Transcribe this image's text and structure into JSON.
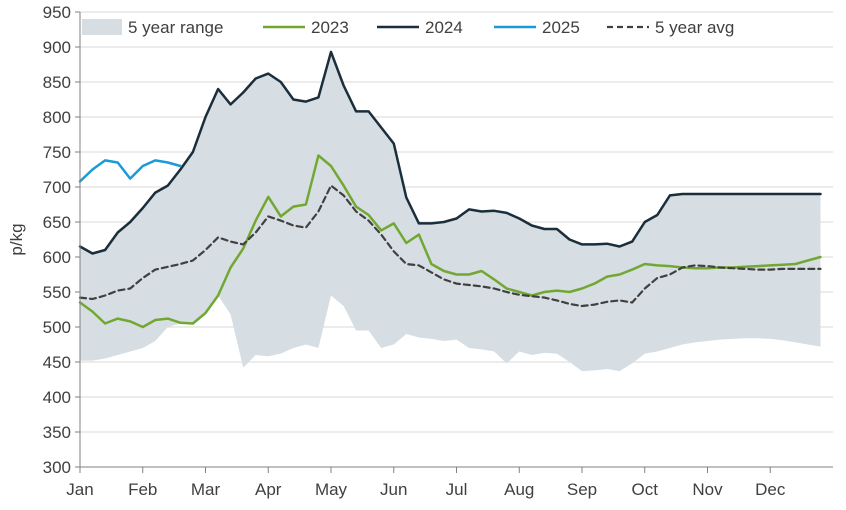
{
  "chart_data": {
    "type": "line",
    "title": "",
    "xlabel": "",
    "ylabel": "p/kg",
    "ylim": [
      300,
      950
    ],
    "yticks": [
      300,
      350,
      400,
      450,
      500,
      550,
      600,
      650,
      700,
      750,
      800,
      850,
      900,
      950
    ],
    "months": [
      "Jan",
      "Feb",
      "Mar",
      "Apr",
      "May",
      "Jun",
      "Jul",
      "Aug",
      "Sep",
      "Oct",
      "Nov",
      "Dec"
    ],
    "grid": "horizontal",
    "legend_position": "top",
    "range": {
      "name": "5 year range",
      "color": "#d6dee3",
      "x": [
        0,
        0.2,
        0.4,
        0.6,
        0.8,
        1.0,
        1.2,
        1.4,
        1.6,
        1.8,
        2.0,
        2.2,
        2.4,
        2.6,
        2.8,
        3.0,
        3.2,
        3.4,
        3.6,
        3.8,
        4.0,
        4.2,
        4.4,
        4.6,
        4.8,
        5.0,
        5.2,
        5.4,
        5.6,
        5.8,
        6.0,
        6.2,
        6.4,
        6.6,
        6.8,
        7.0,
        7.2,
        7.4,
        7.6,
        7.8,
        8.0,
        8.2,
        8.4,
        8.6,
        8.8,
        9.0,
        9.2,
        9.4,
        9.6,
        9.8,
        10.0,
        10.2,
        10.4,
        10.6,
        10.8,
        11.0,
        11.2,
        11.4,
        11.6,
        11.8
      ],
      "upper": [
        615,
        605,
        610,
        635,
        650,
        670,
        692,
        702,
        725,
        750,
        800,
        840,
        818,
        835,
        855,
        862,
        850,
        825,
        822,
        828,
        893,
        845,
        808,
        808,
        785,
        762,
        685,
        648,
        648,
        650,
        655,
        668,
        665,
        666,
        663,
        655,
        645,
        640,
        640,
        625,
        618,
        618,
        619,
        615,
        622,
        650,
        660,
        688,
        690,
        690,
        690,
        690,
        690,
        690,
        690,
        690,
        690,
        690,
        690,
        690
      ],
      "lower": [
        452,
        452,
        455,
        460,
        465,
        470,
        480,
        500,
        505,
        505,
        520,
        545,
        518,
        442,
        460,
        458,
        462,
        470,
        475,
        470,
        545,
        530,
        495,
        495,
        470,
        475,
        490,
        485,
        483,
        480,
        482,
        470,
        468,
        465,
        448,
        465,
        460,
        463,
        462,
        450,
        437,
        438,
        440,
        437,
        448,
        462,
        465,
        470,
        475,
        478,
        480,
        482,
        483,
        484,
        484,
        483,
        481,
        478,
        475,
        472
      ]
    },
    "series": [
      {
        "name": "2023",
        "color": "#72a832",
        "width": 2.5,
        "dash": "",
        "x": [
          0,
          0.2,
          0.4,
          0.6,
          0.8,
          1.0,
          1.2,
          1.4,
          1.6,
          1.8,
          2.0,
          2.2,
          2.4,
          2.6,
          2.8,
          3.0,
          3.2,
          3.4,
          3.6,
          3.8,
          4.0,
          4.2,
          4.4,
          4.6,
          4.8,
          5.0,
          5.2,
          5.4,
          5.6,
          5.8,
          6.0,
          6.2,
          6.4,
          6.6,
          6.8,
          7.0,
          7.2,
          7.4,
          7.6,
          7.8,
          8.0,
          8.2,
          8.4,
          8.6,
          8.8,
          9.0,
          9.2,
          9.4,
          9.6,
          9.8,
          10.0,
          10.2,
          10.4,
          10.6,
          10.8,
          11.0,
          11.2,
          11.4,
          11.6,
          11.8
        ],
        "y": [
          535,
          522,
          505,
          512,
          508,
          500,
          510,
          512,
          506,
          505,
          520,
          545,
          585,
          612,
          652,
          686,
          658,
          672,
          675,
          745,
          730,
          702,
          672,
          660,
          638,
          648,
          620,
          632,
          590,
          580,
          575,
          575,
          580,
          568,
          555,
          550,
          545,
          550,
          552,
          550,
          555,
          562,
          572,
          575,
          582,
          590,
          588,
          587,
          585,
          584,
          584,
          585,
          585,
          586,
          587,
          588,
          589,
          590,
          595,
          600
        ]
      },
      {
        "name": "2024",
        "color": "#1b2e3c",
        "width": 2.5,
        "dash": "",
        "x": [
          0,
          0.2,
          0.4,
          0.6,
          0.8,
          1.0,
          1.2,
          1.4,
          1.6,
          1.8,
          2.0,
          2.2,
          2.4,
          2.6,
          2.8,
          3.0,
          3.2,
          3.4,
          3.6,
          3.8,
          4.0,
          4.2,
          4.4,
          4.6,
          4.8,
          5.0,
          5.2,
          5.4,
          5.6,
          5.8,
          6.0,
          6.2,
          6.4,
          6.6,
          6.8,
          7.0,
          7.2,
          7.4,
          7.6,
          7.8,
          8.0,
          8.2,
          8.4,
          8.6,
          8.8,
          9.0,
          9.2,
          9.4,
          9.6,
          9.8,
          10.0,
          10.2,
          10.4,
          10.6,
          10.8,
          11.0,
          11.2,
          11.4,
          11.6,
          11.8
        ],
        "y": [
          615,
          605,
          610,
          635,
          650,
          670,
          692,
          702,
          725,
          750,
          800,
          840,
          818,
          835,
          855,
          862,
          850,
          825,
          822,
          828,
          893,
          845,
          808,
          808,
          785,
          762,
          685,
          648,
          648,
          650,
          655,
          668,
          665,
          666,
          663,
          655,
          645,
          640,
          640,
          625,
          618,
          618,
          619,
          615,
          622,
          650,
          660,
          688,
          690,
          690,
          690,
          690,
          690,
          690,
          690,
          690,
          690,
          690,
          690,
          690
        ]
      },
      {
        "name": "2025",
        "color": "#1a9bd7",
        "width": 2.5,
        "dash": "",
        "x": [
          0,
          0.2,
          0.4,
          0.6,
          0.8,
          1.0,
          1.2,
          1.4,
          1.6
        ],
        "y": [
          708,
          725,
          738,
          735,
          712,
          730,
          738,
          735,
          730
        ]
      },
      {
        "name": "5 year avg",
        "color": "#404040",
        "width": 2.2,
        "dash": "6,4",
        "x": [
          0,
          0.2,
          0.4,
          0.6,
          0.8,
          1.0,
          1.2,
          1.4,
          1.6,
          1.8,
          2.0,
          2.2,
          2.4,
          2.6,
          2.8,
          3.0,
          3.2,
          3.4,
          3.6,
          3.8,
          4.0,
          4.2,
          4.4,
          4.6,
          4.8,
          5.0,
          5.2,
          5.4,
          5.6,
          5.8,
          6.0,
          6.2,
          6.4,
          6.6,
          6.8,
          7.0,
          7.2,
          7.4,
          7.6,
          7.8,
          8.0,
          8.2,
          8.4,
          8.6,
          8.8,
          9.0,
          9.2,
          9.4,
          9.6,
          9.8,
          10.0,
          10.2,
          10.4,
          10.6,
          10.8,
          11.0,
          11.2,
          11.4,
          11.6,
          11.8
        ],
        "y": [
          542,
          540,
          545,
          552,
          555,
          570,
          582,
          586,
          590,
          595,
          610,
          628,
          622,
          618,
          635,
          658,
          652,
          645,
          642,
          665,
          702,
          688,
          665,
          652,
          632,
          608,
          590,
          588,
          578,
          568,
          562,
          560,
          558,
          555,
          550,
          546,
          544,
          542,
          538,
          533,
          530,
          532,
          536,
          538,
          535,
          555,
          570,
          575,
          585,
          588,
          587,
          585,
          584,
          583,
          582,
          582,
          583,
          583,
          583,
          583
        ]
      }
    ]
  }
}
